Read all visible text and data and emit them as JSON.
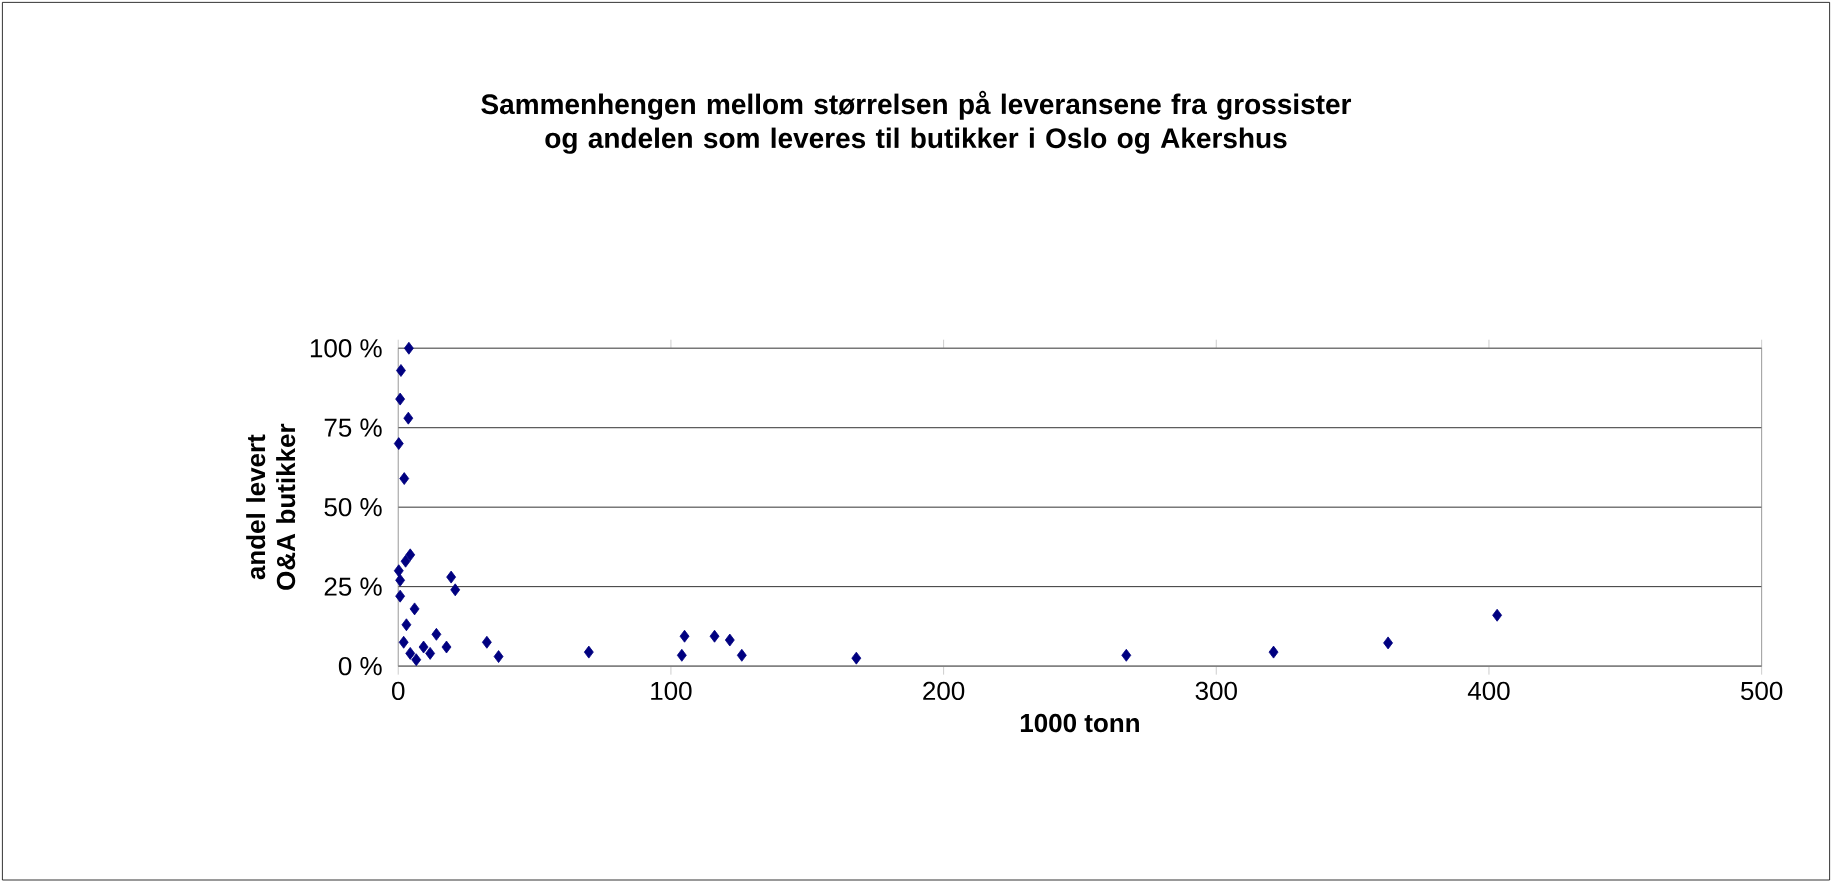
{
  "chart_data": {
    "type": "scatter",
    "title": "Sammenhengen mellom størrelsen på leveransene fra grossister og andelen som leveres til butikker i Oslo og Akershus",
    "xlabel": "1000 tonn",
    "ylabel": "andel levert O&A butikker",
    "marker": "diamond",
    "grid": "y",
    "series": [
      {
        "color": "#000080",
        "x": [
          3.9,
          1,
          0.7,
          3.7,
          0.2,
          2.2,
          4.4,
          2.7,
          0.2,
          0.7,
          19.4,
          20.9,
          0.7,
          6,
          3,
          2,
          4.4,
          9.3,
          14,
          17.7,
          32.5,
          36.8,
          69.9,
          11.7,
          6.6,
          104,
          105,
          116,
          121.6,
          126,
          168,
          267,
          321,
          363,
          403
        ],
        "values": [
          100,
          93,
          84,
          78,
          70,
          59,
          35,
          33,
          30,
          27,
          28,
          24,
          22,
          18,
          13,
          7.5,
          4,
          6,
          10,
          6,
          7.5,
          3,
          4.4,
          4,
          2,
          3.4,
          9.4,
          9.4,
          8.2,
          3.4,
          2.5,
          3.4,
          4.4,
          7.3,
          16
        ]
      }
    ],
    "xlim": [
      0,
      500
    ],
    "xticks": [
      0,
      100,
      200,
      300,
      400,
      500
    ],
    "ylim": [
      0,
      100
    ],
    "yticks": [
      {
        "value": 0,
        "label": "0 %"
      },
      {
        "value": 25,
        "label": "25 %"
      },
      {
        "value": 50,
        "label": "50 %"
      },
      {
        "value": 75,
        "label": "75 %"
      },
      {
        "value": 100,
        "label": "100 %"
      }
    ]
  }
}
